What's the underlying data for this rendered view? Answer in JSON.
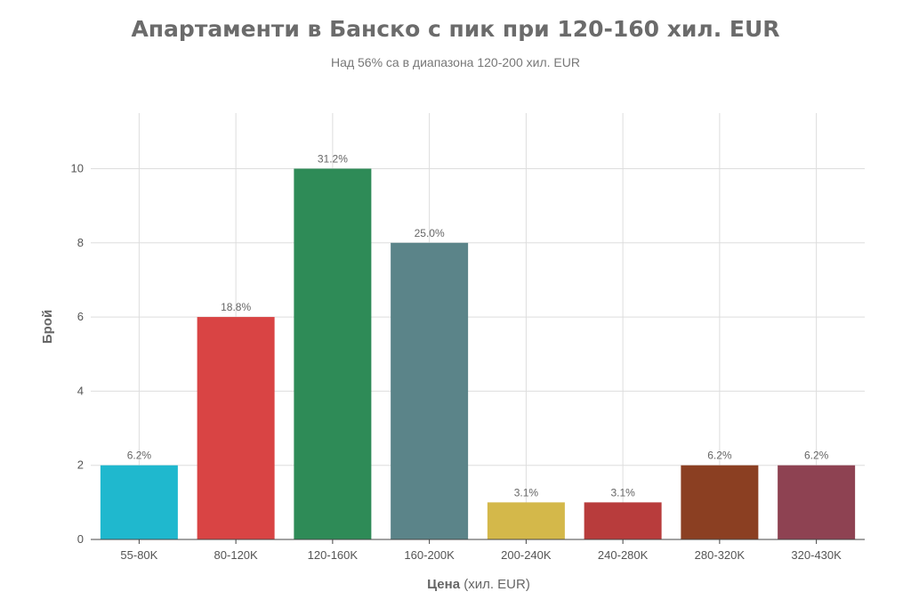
{
  "chart_data": {
    "type": "bar",
    "title": "Апартаменти в Банско с пик при 120-160 хил. EUR",
    "subtitle": "Над 56% са в диапазона 120-200 хил. EUR",
    "xlabel_bold": "Цена",
    "xlabel_rest": " (хил. EUR)",
    "ylabel": "Брой",
    "categories": [
      "55-80K",
      "80-120K",
      "120-160K",
      "160-200K",
      "200-240K",
      "240-280K",
      "280-320K",
      "320-430K"
    ],
    "values": [
      2,
      6,
      10,
      8,
      1,
      1,
      2,
      2
    ],
    "labels": [
      "6.2%",
      "18.8%",
      "31.2%",
      "25.0%",
      "3.1%",
      "3.1%",
      "6.2%",
      "6.2%"
    ],
    "colors": [
      "#1fb8ce",
      "#d94444",
      "#2e8b57",
      "#5b8489",
      "#d4b84a",
      "#b83c3c",
      "#8b3f22",
      "#8e4252"
    ],
    "yticks": [
      0,
      2,
      4,
      6,
      8,
      10
    ],
    "ylim": [
      0,
      11.5
    ],
    "grid": true
  }
}
